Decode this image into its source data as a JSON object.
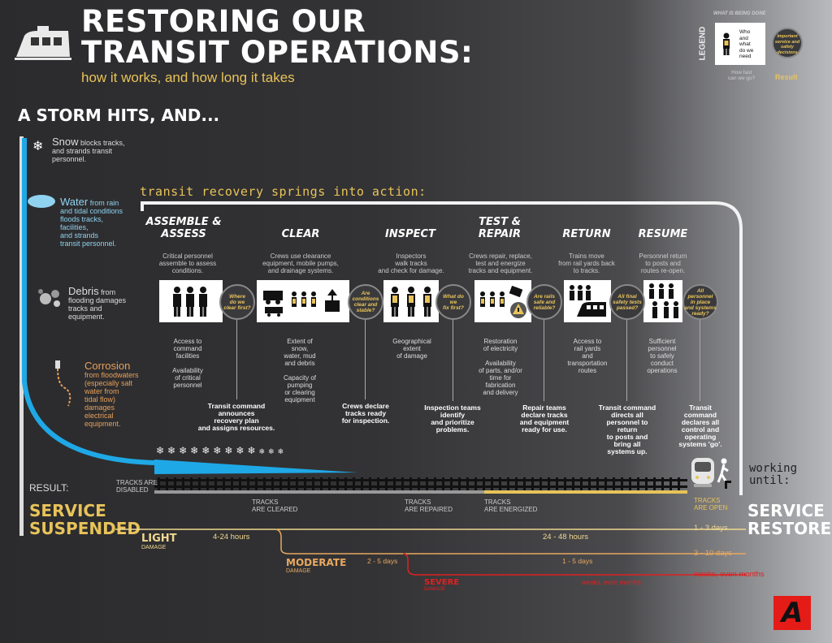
{
  "title_line1": "RESTORING OUR",
  "title_line2": "TRANSIT OPERATIONS:",
  "subtitle": "how it works, and how long it takes",
  "storm_heading": "A STORM HITS, AND...",
  "causes": [
    {
      "name": "Snow",
      "text1": "blocks tracks,",
      "text2": "and strands transit",
      "text3": "personnel.",
      "color": "#ffffff"
    },
    {
      "name": "Water",
      "text1": "from rain",
      "text2": "and tidal conditions",
      "text3": "floods tracks,",
      "text4": "facilities,",
      "text5": "and strands",
      "text6": "transit personnel.",
      "color": "#8fd3f0"
    },
    {
      "name": "Debris",
      "text1": "from",
      "text2": "flooding damages",
      "text3": "tracks and",
      "text4": "equipment.",
      "color": "#ffffff"
    },
    {
      "name": "Corrosion",
      "text1": "from floodwaters",
      "text2": "(especially salt",
      "text3": "water from",
      "text4": "tidal flow)",
      "text5": "damages",
      "text6": "electrical",
      "text7": "equipment.",
      "color": "#e8a05a"
    }
  ],
  "springs": "transit recovery springs into action:",
  "phases": [
    {
      "label1": "ASSEMBLE &",
      "label2": "ASSESS",
      "d1": "Critical personnel",
      "d2": "assemble to assess",
      "d3": "conditions."
    },
    {
      "label1": "",
      "label2": "CLEAR",
      "d1": "Crews use clearance",
      "d2": "equipment, mobile pumps,",
      "d3": "and drainage systems."
    },
    {
      "label1": "",
      "label2": "INSPECT",
      "d1": "Inspectors",
      "d2": "walk tracks",
      "d3": "and check for damage."
    },
    {
      "label1": "TEST &",
      "label2": "REPAIR",
      "d1": "Crews repair, replace,",
      "d2": "test and energize",
      "d3": "tracks and equipment."
    },
    {
      "label1": "",
      "label2": "RETURN",
      "d1": "Trains move",
      "d2": "from rail yards back",
      "d3": "to tracks."
    },
    {
      "label1": "",
      "label2": "RESUME",
      "d1": "Personnel return",
      "d2": "to posts and",
      "d3": "routes re-open."
    }
  ],
  "questions": [
    [
      "Where",
      "do we",
      "clear first?"
    ],
    [
      "Are",
      "conditions",
      "clear and",
      "stable?"
    ],
    [
      "What do",
      "we",
      "fix first?"
    ],
    [
      "Are rails",
      "safe and",
      "reliable?"
    ],
    [
      "All final",
      "safety tests",
      "passed?"
    ],
    [
      "All",
      "personnel",
      "in place",
      "and systems",
      "ready?"
    ]
  ],
  "needs": [
    [
      "Access to",
      "command",
      "facilities",
      "",
      "Availability",
      "of critical",
      "personnel"
    ],
    [
      "Extent of",
      "snow,",
      "water, mud",
      "and debris",
      "",
      "Capacity of",
      "pumping",
      "or clearing",
      "equipment"
    ],
    [
      "Geographical",
      "extent",
      "of damage"
    ],
    [
      "Restoration",
      "of electricity",
      "",
      "Availability",
      "of parts, and/or",
      "time for",
      "fabrication",
      "and delivery"
    ],
    [
      "Access to",
      "rail yards",
      "and",
      "transportation",
      "routes"
    ],
    [
      "Sufficient",
      "personnel",
      "to safely",
      "conduct",
      "operations"
    ]
  ],
  "results": [
    [
      "Transit command",
      "announces",
      "recovery plan",
      "and assigns resources."
    ],
    [
      "Crews declare",
      "tracks ready",
      "for inspection."
    ],
    [
      "Inspection teams",
      "identify",
      "and prioritize",
      "problems."
    ],
    [
      "Repair teams",
      "declare tracks",
      "and equipment",
      "ready for use."
    ],
    [
      "Transit command",
      "directs all",
      "personnel to",
      "return",
      "to posts and",
      "bring all",
      "systems up."
    ],
    [
      "Transit",
      "command",
      "declares all",
      "control and",
      "operating",
      "systems 'go'."
    ]
  ],
  "track_labels": {
    "disabled1": "TRACKS ARE",
    "disabled2": "DISABLED",
    "cleared1": "TRACKS",
    "cleared2": "ARE CLEARED",
    "repaired1": "TRACKS",
    "repaired2": "ARE REPAIRED",
    "energized1": "TRACKS",
    "energized2": "ARE ENERGIZED",
    "open1": "TRACKS",
    "open2": "ARE OPEN"
  },
  "result_label": "RESULT:",
  "suspended1": "SERVICE",
  "suspended2": "SUSPENDED",
  "working1": "working",
  "working2": "until:",
  "restored1": "SERVICE",
  "restored2": "RESTORED",
  "damage": [
    {
      "level": "LIGHT",
      "sub": "DAMAGE",
      "d1": "4-24 hours",
      "d2": "24 - 48 hours",
      "total": "1 - 3 days",
      "color": "#f0d890"
    },
    {
      "level": "MODERATE",
      "sub": "DAMAGE",
      "d1": "2 - 5 days",
      "d2": "1 - 5 days",
      "total": "3 - 10 days",
      "color": "#e8a860"
    },
    {
      "level": "SEVERE",
      "sub": "DAMAGE",
      "d1": "",
      "d2": "weeks, even months",
      "total": "weeks, even months",
      "color": "#e02020"
    }
  ],
  "legend": {
    "heading": "WHAT IS BEING DONE",
    "label": "LEGEND",
    "who1": "Who",
    "who2": "and",
    "who3": "what",
    "who4": "do we",
    "who5": "need",
    "imp1": "Important",
    "imp2": "service and",
    "imp3": "safety",
    "imp4": "decisions",
    "fast1": "How fast",
    "fast2": "can we go?",
    "result": "Result"
  },
  "logo": "A",
  "colors": {
    "accent": "#e8c35a",
    "water": "#1fa8e6",
    "severe": "#e02020",
    "logo_bg": "#e41b17"
  }
}
